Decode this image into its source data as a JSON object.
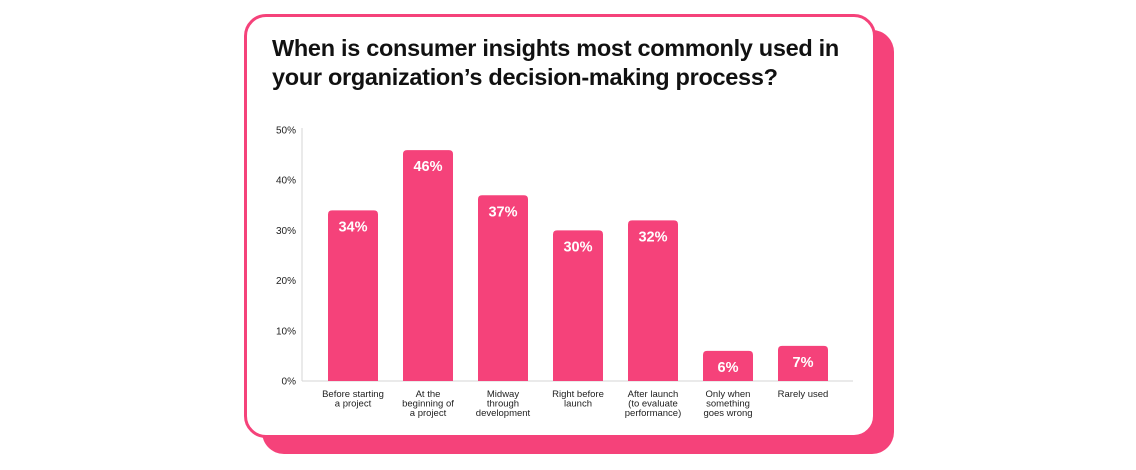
{
  "title": "When is consumer insights most commonly used in your organization’s decision-making process?",
  "colors": {
    "accent": "#f5427a",
    "text": "#111111",
    "bar_label": "#ffffff"
  },
  "chart_data": {
    "type": "bar",
    "title": "When is consumer insights most commonly used in your organization’s decision-making process?",
    "categories": [
      [
        "Before starting",
        "a project"
      ],
      [
        "At the",
        "beginning of",
        "a project"
      ],
      [
        "Midway",
        "through",
        "development"
      ],
      [
        "Right before",
        "launch"
      ],
      [
        "After launch",
        "(to evaluate",
        "performance)"
      ],
      [
        "Only when",
        "something",
        "goes wrong"
      ],
      [
        "Rarely used"
      ]
    ],
    "values": [
      34,
      46,
      37,
      30,
      32,
      6,
      7
    ],
    "value_labels": [
      "34%",
      "46%",
      "37%",
      "30%",
      "32%",
      "6%",
      "7%"
    ],
    "ylim": [
      0,
      50
    ],
    "yticks": [
      0,
      10,
      20,
      30,
      40,
      50
    ],
    "ytick_labels": [
      "0%",
      "10%",
      "20%",
      "30%",
      "40%",
      "50%"
    ],
    "xlabel": "",
    "ylabel": "",
    "grid": false,
    "legend": "none"
  }
}
